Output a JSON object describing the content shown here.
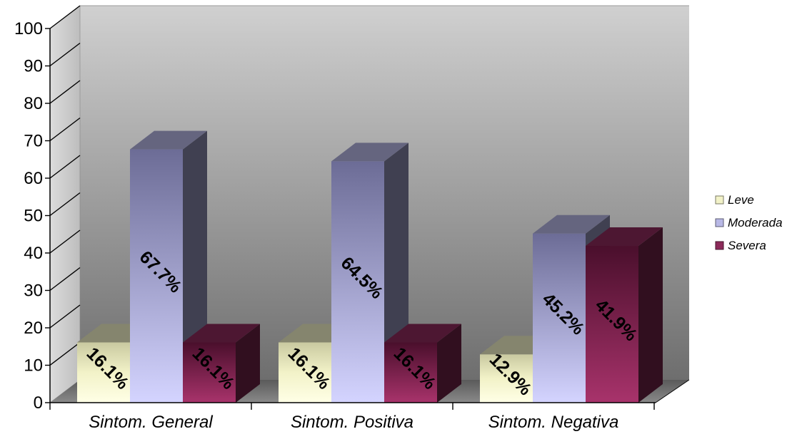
{
  "chart_data": {
    "type": "bar",
    "categories": [
      "Sintom. General",
      "Sintom. Positiva",
      "Sintom. Negativa"
    ],
    "series": [
      {
        "name": "Leve",
        "values": [
          16.1,
          16.1,
          12.9
        ],
        "labels": [
          "16.1%",
          "16.1%",
          "12.9%"
        ]
      },
      {
        "name": "Moderada",
        "values": [
          67.7,
          64.5,
          45.2
        ],
        "labels": [
          "67.7%",
          "64.5%",
          "45.2%"
        ]
      },
      {
        "name": "Severa",
        "values": [
          16.1,
          16.1,
          41.9
        ],
        "labels": [
          "16.1%",
          "16.1%",
          "41.9%"
        ]
      }
    ],
    "y_ticks": [
      "0",
      "10",
      "20",
      "30",
      "40",
      "50",
      "60",
      "70",
      "80",
      "90",
      "100"
    ],
    "ylim": [
      0,
      100
    ],
    "legend_position": "right",
    "colors": {
      "Leve": "#f2f2c8",
      "Moderada": "#b8b8e6",
      "Severa": "#8c2a5a"
    }
  }
}
